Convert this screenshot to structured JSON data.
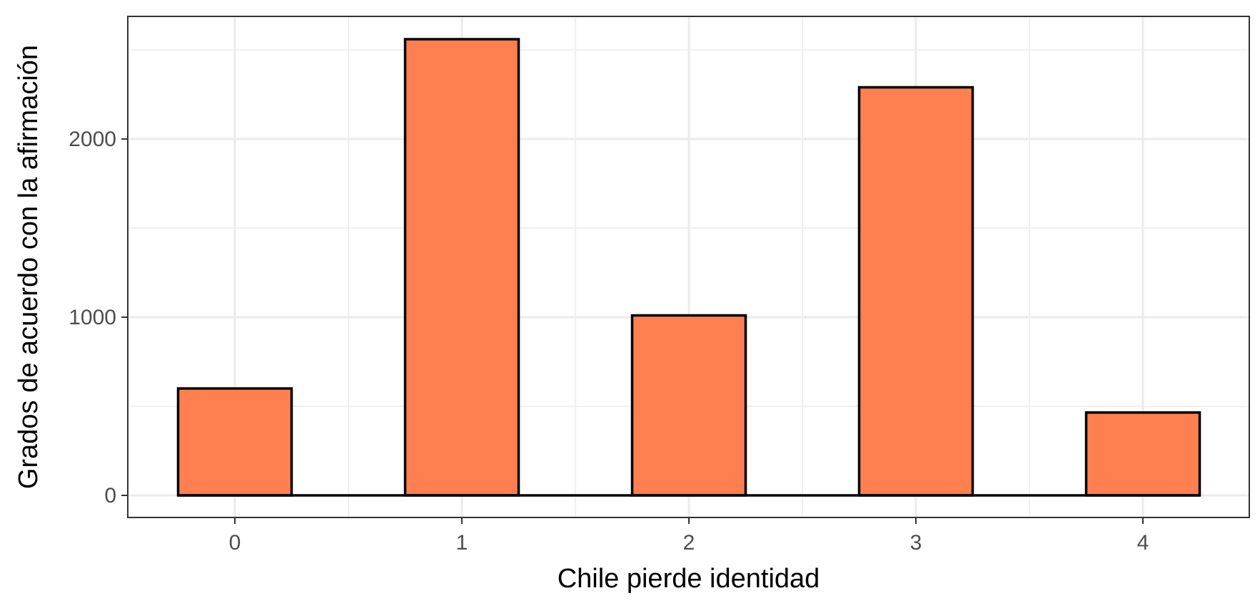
{
  "chart_data": {
    "type": "bar",
    "categories": [
      "0",
      "1",
      "2",
      "3",
      "4"
    ],
    "values": [
      600,
      2560,
      1010,
      2290,
      465
    ],
    "xlabel": "Chile pierde identidad",
    "ylabel": "Grados de acuerdo con la afirmación",
    "x_ticks": [
      "0",
      "1",
      "2",
      "3",
      "4"
    ],
    "y_ticks": [
      "0",
      "1000",
      "2000"
    ],
    "ylim": [
      -120,
      2700
    ],
    "grid": true,
    "bar_fill": "#ff7f50",
    "bar_outline": "#000000",
    "panel_border": "#333333",
    "grid_color": "#ebebeb"
  }
}
